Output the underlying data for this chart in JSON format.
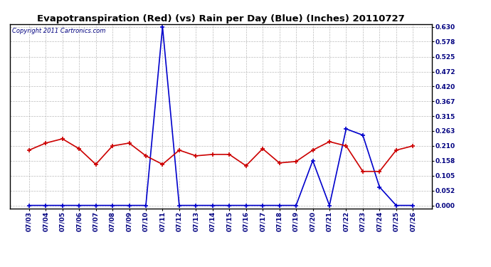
{
  "title": "Evapotranspiration (Red) (vs) Rain per Day (Blue) (Inches) 20110727",
  "copyright": "Copyright 2011 Cartronics.com",
  "dates": [
    "07/03",
    "07/04",
    "07/05",
    "07/06",
    "07/07",
    "07/08",
    "07/09",
    "07/10",
    "07/11",
    "07/12",
    "07/13",
    "07/14",
    "07/15",
    "07/16",
    "07/17",
    "07/18",
    "07/19",
    "07/20",
    "07/21",
    "07/22",
    "07/23",
    "07/24",
    "07/25",
    "07/26"
  ],
  "red_values": [
    0.195,
    0.22,
    0.235,
    0.2,
    0.145,
    0.21,
    0.22,
    0.175,
    0.145,
    0.195,
    0.175,
    0.18,
    0.18,
    0.14,
    0.2,
    0.15,
    0.155,
    0.195,
    0.225,
    0.21,
    0.12,
    0.12,
    0.195,
    0.21
  ],
  "blue_values": [
    0.0,
    0.0,
    0.0,
    0.0,
    0.0,
    0.0,
    0.0,
    0.0,
    0.63,
    0.0,
    0.0,
    0.0,
    0.0,
    0.0,
    0.0,
    0.0,
    0.0,
    0.158,
    0.0,
    0.27,
    0.248,
    0.065,
    0.0,
    0.0
  ],
  "ylim": [
    -0.01,
    0.64
  ],
  "yticks": [
    0.0,
    0.052,
    0.105,
    0.158,
    0.21,
    0.263,
    0.315,
    0.367,
    0.42,
    0.472,
    0.525,
    0.578,
    0.63
  ],
  "red_color": "#cc0000",
  "blue_color": "#0000cc",
  "background_color": "#ffffff",
  "plot_bg_color": "#ffffff",
  "grid_color": "#aaaaaa",
  "title_fontsize": 9.5,
  "tick_fontsize": 6.5,
  "copyright_fontsize": 6
}
